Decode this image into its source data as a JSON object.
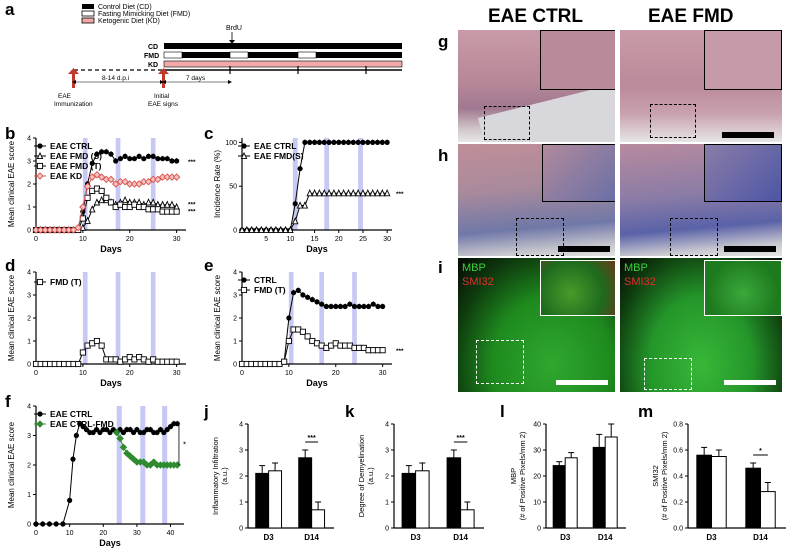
{
  "panels": [
    "a",
    "b",
    "c",
    "d",
    "e",
    "f",
    "g",
    "h",
    "i",
    "j",
    "k",
    "l",
    "m"
  ],
  "schematic": {
    "legend": [
      "Control Diet (CD)",
      "Fasting Mimicking Diet (FMD)",
      "Ketogenic Diet (KD)"
    ],
    "brdu": "BrdU",
    "rows": [
      "CD",
      "FMD",
      "KD"
    ],
    "immunization": "EAE\nImmunization",
    "initial": "Initial\nEAE signs",
    "dpi": "8-14 d.p.i",
    "days7": "7 days",
    "colors": {
      "cd": "#000000",
      "fmd": "#ffffff",
      "kd": "#f2aaa8"
    }
  },
  "micro": {
    "col_titles": [
      "EAE CTRL",
      "EAE FMD"
    ],
    "mbp": "MBP",
    "smi32": "SMI32"
  },
  "stars": "***",
  "star1": "*",
  "chart_data": [
    {
      "id": "b",
      "type": "line",
      "xlabel": "Days",
      "ylabel": "Mean clinical EAE score",
      "xlim": [
        0,
        32
      ],
      "ylim": [
        0,
        4
      ],
      "xticks": [
        0,
        10,
        20,
        30
      ],
      "yticks": [
        0,
        1,
        2,
        3,
        4
      ],
      "shaded": [
        [
          10,
          11
        ],
        [
          17,
          18
        ],
        [
          24.5,
          25.5
        ]
      ],
      "legend": [
        "EAE CTRL",
        "EAE FMD (S)",
        "EAE FMD (T)",
        "EAE KD"
      ],
      "series": [
        {
          "name": "EAE CTRL",
          "marker": "circle",
          "color": "#000",
          "x": [
            0,
            1,
            2,
            3,
            4,
            5,
            6,
            7,
            8,
            9,
            10,
            11,
            12,
            13,
            14,
            15,
            16,
            17,
            18,
            19,
            20,
            21,
            22,
            23,
            24,
            25,
            26,
            27,
            28,
            29,
            30
          ],
          "y": [
            0,
            0,
            0,
            0,
            0,
            0,
            0,
            0,
            0,
            0.1,
            0.8,
            2.0,
            2.9,
            3.3,
            3.4,
            3.4,
            3.3,
            3.0,
            3.1,
            3.2,
            3.1,
            3.1,
            3.2,
            3.1,
            3.2,
            3.2,
            3.1,
            3.1,
            3.1,
            3.0,
            3.0
          ]
        },
        {
          "name": "EAE FMD (S)",
          "marker": "triangle",
          "color": "#000",
          "x": [
            0,
            1,
            2,
            3,
            4,
            5,
            6,
            7,
            8,
            9,
            10,
            11,
            12,
            13,
            14,
            15,
            16,
            17,
            18,
            19,
            20,
            21,
            22,
            23,
            24,
            25,
            26,
            27,
            28,
            29,
            30
          ],
          "y": [
            0,
            0,
            0,
            0,
            0,
            0,
            0,
            0,
            0,
            0,
            0.1,
            0.4,
            0.9,
            1.2,
            1.3,
            1.3,
            1.2,
            1.1,
            1.2,
            1.3,
            1.2,
            1.2,
            1.2,
            1.1,
            1.2,
            1.2,
            1.1,
            1.1,
            1.1,
            1.1,
            1.0
          ]
        },
        {
          "name": "EAE FMD (T)",
          "marker": "square",
          "color": "#000",
          "x": [
            0,
            1,
            2,
            3,
            4,
            5,
            6,
            7,
            8,
            9,
            10,
            11,
            12,
            13,
            14,
            15,
            16,
            17,
            18,
            19,
            20,
            21,
            22,
            23,
            24,
            25,
            26,
            27,
            28,
            29,
            30
          ],
          "y": [
            0,
            0,
            0,
            0,
            0,
            0,
            0,
            0,
            0,
            0,
            0.5,
            1.4,
            1.7,
            1.8,
            1.7,
            1.4,
            1.2,
            1.0,
            1.1,
            1.0,
            1.0,
            1.1,
            1.0,
            1.0,
            0.9,
            0.9,
            0.9,
            0.8,
            0.8,
            0.8,
            0.8
          ]
        },
        {
          "name": "EAE KD",
          "marker": "diamond",
          "color": "#d9534f",
          "x": [
            0,
            1,
            2,
            3,
            4,
            5,
            6,
            7,
            8,
            9,
            10,
            11,
            12,
            13,
            14,
            15,
            16,
            17,
            18,
            19,
            20,
            21,
            22,
            23,
            24,
            25,
            26,
            27,
            28,
            29,
            30
          ],
          "y": [
            0,
            0,
            0,
            0,
            0,
            0,
            0,
            0,
            0,
            0.1,
            1.0,
            1.9,
            2.3,
            2.4,
            2.3,
            2.2,
            2.2,
            2.0,
            2.1,
            2.1,
            2.0,
            2.0,
            2.0,
            2.1,
            2.1,
            2.2,
            2.2,
            2.3,
            2.3,
            2.3,
            2.3
          ]
        }
      ]
    },
    {
      "id": "c",
      "type": "line",
      "xlabel": "Days",
      "ylabel": "Incidence Rate (%)",
      "xlim": [
        0,
        31
      ],
      "ylim": [
        0,
        105
      ],
      "xticks": [
        5,
        10,
        15,
        20,
        25,
        30
      ],
      "yticks": [
        0,
        50,
        100
      ],
      "shaded": [
        [
          10.5,
          11.5
        ],
        [
          17,
          18
        ],
        [
          24,
          25
        ]
      ],
      "legend": [
        "EAE CTRL",
        "EAE FMD(S)"
      ],
      "series": [
        {
          "name": "EAE CTRL",
          "marker": "circle",
          "color": "#000",
          "x": [
            0,
            1,
            2,
            3,
            4,
            5,
            6,
            7,
            8,
            9,
            10,
            11,
            12,
            13,
            14,
            15,
            16,
            17,
            18,
            19,
            20,
            21,
            22,
            23,
            24,
            25,
            26,
            27,
            28,
            29,
            30
          ],
          "y": [
            0,
            0,
            0,
            0,
            0,
            0,
            0,
            0,
            0,
            0,
            0,
            30,
            70,
            100,
            100,
            100,
            100,
            100,
            100,
            100,
            100,
            100,
            100,
            100,
            100,
            100,
            100,
            100,
            100,
            100,
            100
          ]
        },
        {
          "name": "EAE FMD(S)",
          "marker": "triangle",
          "color": "#000",
          "x": [
            0,
            1,
            2,
            3,
            4,
            5,
            6,
            7,
            8,
            9,
            10,
            11,
            12,
            13,
            14,
            15,
            16,
            17,
            18,
            19,
            20,
            21,
            22,
            23,
            24,
            25,
            26,
            27,
            28,
            29,
            30
          ],
          "y": [
            0,
            0,
            0,
            0,
            0,
            0,
            0,
            0,
            0,
            0,
            0,
            10,
            28,
            28,
            42,
            42,
            42,
            42,
            42,
            42,
            42,
            42,
            42,
            42,
            42,
            42,
            42,
            42,
            42,
            42,
            42
          ]
        }
      ]
    },
    {
      "id": "d",
      "type": "line",
      "xlabel": "Days",
      "ylabel": "Mean clinical EAE score",
      "xlim": [
        0,
        32
      ],
      "ylim": [
        0,
        4
      ],
      "xticks": [
        0,
        10,
        20,
        30
      ],
      "yticks": [
        0,
        1,
        2,
        3,
        4
      ],
      "shaded": [
        [
          10,
          11
        ],
        [
          17,
          18
        ],
        [
          24.5,
          25.5
        ]
      ],
      "legend": [
        "FMD (T)"
      ],
      "series": [
        {
          "name": "FMD (T)",
          "marker": "square",
          "color": "#000",
          "x": [
            0,
            1,
            2,
            3,
            4,
            5,
            6,
            7,
            8,
            9,
            10,
            11,
            12,
            13,
            14,
            15,
            16,
            17,
            18,
            19,
            20,
            21,
            22,
            23,
            24,
            25,
            26,
            27,
            28,
            29,
            30
          ],
          "y": [
            0,
            0,
            0,
            0,
            0,
            0,
            0,
            0,
            0,
            0,
            0.5,
            0.8,
            0.9,
            1.0,
            0.8,
            0.2,
            0.2,
            0.2,
            0.1,
            0.2,
            0.3,
            0.2,
            0.3,
            0.2,
            0.1,
            0.2,
            0.1,
            0.1,
            0.1,
            0.1,
            0.1
          ]
        }
      ]
    },
    {
      "id": "e",
      "type": "line",
      "xlabel": "Days",
      "ylabel": "Mean clinical EAE score",
      "xlim": [
        0,
        32
      ],
      "ylim": [
        0,
        4
      ],
      "xticks": [
        0,
        10,
        20,
        30
      ],
      "yticks": [
        0,
        1,
        2,
        3,
        4
      ],
      "shaded": [
        [
          10,
          11
        ],
        [
          16.5,
          17.5
        ],
        [
          23.5,
          24.5
        ]
      ],
      "legend": [
        "CTRL",
        "FMD (T)"
      ],
      "series": [
        {
          "name": "CTRL",
          "marker": "circle",
          "color": "#000",
          "x": [
            0,
            1,
            2,
            3,
            4,
            5,
            6,
            7,
            8,
            9,
            10,
            11,
            12,
            13,
            14,
            15,
            16,
            17,
            18,
            19,
            20,
            21,
            22,
            23,
            24,
            25,
            26,
            27,
            28,
            29,
            30
          ],
          "y": [
            0,
            0,
            0,
            0,
            0,
            0,
            0,
            0,
            0,
            0.1,
            2.0,
            3.1,
            3.2,
            3.0,
            2.9,
            2.8,
            2.7,
            2.6,
            2.5,
            2.5,
            2.5,
            2.5,
            2.5,
            2.6,
            2.5,
            2.5,
            2.5,
            2.5,
            2.6,
            2.5,
            2.5
          ]
        },
        {
          "name": "FMD (T)",
          "marker": "square",
          "color": "#000",
          "x": [
            0,
            1,
            2,
            3,
            4,
            5,
            6,
            7,
            8,
            9,
            10,
            11,
            12,
            13,
            14,
            15,
            16,
            17,
            18,
            19,
            20,
            21,
            22,
            23,
            24,
            25,
            26,
            27,
            28,
            29,
            30
          ],
          "y": [
            0,
            0,
            0,
            0,
            0,
            0,
            0,
            0,
            0,
            0.1,
            1.0,
            1.5,
            1.5,
            1.4,
            1.2,
            1.0,
            0.9,
            0.8,
            0.7,
            0.8,
            0.9,
            0.8,
            0.8,
            0.8,
            0.7,
            0.7,
            0.7,
            0.6,
            0.6,
            0.6,
            0.6
          ]
        }
      ]
    },
    {
      "id": "f",
      "type": "line",
      "xlabel": "Days",
      "ylabel": "Mean clinical EAE score",
      "xlim": [
        0,
        44
      ],
      "ylim": [
        0,
        4
      ],
      "xticks": [
        0,
        10,
        20,
        30,
        40
      ],
      "yticks": [
        0,
        1,
        2,
        3,
        4
      ],
      "shaded": [
        [
          24,
          25.5
        ],
        [
          31,
          32.5
        ],
        [
          37.5,
          39
        ]
      ],
      "legend": [
        "EAE CTRL",
        "EAE CTRL-FMD"
      ],
      "series": [
        {
          "name": "EAE CTRL",
          "marker": "circle",
          "color": "#000",
          "x": [
            0,
            2,
            4,
            6,
            8,
            10,
            11,
            12,
            13,
            14,
            15,
            16,
            17,
            18,
            19,
            20,
            21,
            22,
            23,
            24,
            25,
            26,
            27,
            28,
            29,
            30,
            31,
            32,
            33,
            34,
            35,
            36,
            37,
            38,
            39,
            40,
            41,
            42
          ],
          "y": [
            0,
            0,
            0,
            0,
            0,
            0.8,
            2.2,
            3.0,
            3.4,
            3.3,
            3.2,
            3.1,
            3.1,
            3.2,
            3.1,
            3.2,
            3.2,
            3.1,
            3.2,
            3.1,
            3.2,
            3.1,
            3.2,
            3.2,
            3.1,
            3.2,
            3.1,
            3.1,
            3.2,
            3.2,
            3.1,
            3.1,
            3.2,
            3.1,
            3.2,
            3.3,
            3.4,
            3.4
          ]
        },
        {
          "name": "EAE CTRL-FMD",
          "marker": "diamond",
          "color": "#2e8b2e",
          "x": [
            24,
            25,
            26,
            27,
            28,
            29,
            30,
            31,
            32,
            33,
            34,
            35,
            36,
            37,
            38,
            39,
            40,
            41,
            42
          ],
          "y": [
            3.1,
            2.9,
            2.6,
            2.4,
            2.3,
            2.2,
            2.1,
            2.1,
            2.1,
            2.0,
            2.0,
            2.1,
            2.0,
            2.0,
            2.0,
            2.0,
            2.0,
            2.0,
            2.0
          ]
        }
      ]
    },
    {
      "id": "j",
      "type": "bar",
      "ylabel": "Inflammatory Infiltration\n(a.u.)",
      "categories": [
        "D3",
        "D14"
      ],
      "ylim": [
        0,
        4
      ],
      "yticks": [
        0,
        1,
        2,
        3,
        4
      ],
      "series": [
        {
          "fill": "#000",
          "values": [
            2.1,
            2.7
          ],
          "err": [
            0.3,
            0.3
          ]
        },
        {
          "fill": "#fff",
          "values": [
            2.2,
            0.7
          ],
          "err": [
            0.3,
            0.3
          ]
        }
      ],
      "sig": {
        "group": 1,
        "label": "***"
      }
    },
    {
      "id": "k",
      "type": "bar",
      "ylabel": "Degree of Demyelination\n(a.u.)",
      "categories": [
        "D3",
        "D14"
      ],
      "ylim": [
        0,
        4
      ],
      "yticks": [
        0,
        1,
        2,
        3,
        4
      ],
      "series": [
        {
          "fill": "#000",
          "values": [
            2.1,
            2.7
          ],
          "err": [
            0.3,
            0.3
          ]
        },
        {
          "fill": "#fff",
          "values": [
            2.2,
            0.7
          ],
          "err": [
            0.3,
            0.3
          ]
        }
      ],
      "sig": {
        "group": 1,
        "label": "***"
      }
    },
    {
      "id": "l",
      "type": "bar",
      "ylabel": "MBP\n(# of Positive Pixels/mm 2)",
      "categories": [
        "D3",
        "D14"
      ],
      "ylim": [
        0,
        40
      ],
      "yticks": [
        0,
        10,
        20,
        30,
        40
      ],
      "series": [
        {
          "fill": "#000",
          "values": [
            24,
            31
          ],
          "err": [
            1.5,
            5
          ]
        },
        {
          "fill": "#fff",
          "values": [
            27,
            35
          ],
          "err": [
            2,
            5
          ]
        }
      ]
    },
    {
      "id": "m",
      "type": "bar",
      "ylabel": "SMI32\n(# of Positive Pixels/mm 2)",
      "categories": [
        "D3",
        "D14"
      ],
      "ylim": [
        0,
        0.8
      ],
      "yticks": [
        0.0,
        0.2,
        0.4,
        0.6,
        0.8
      ],
      "series": [
        {
          "fill": "#000",
          "values": [
            0.56,
            0.46
          ],
          "err": [
            0.06,
            0.04
          ]
        },
        {
          "fill": "#fff",
          "values": [
            0.55,
            0.28
          ],
          "err": [
            0.05,
            0.07
          ]
        }
      ],
      "sig": {
        "group": 1,
        "label": "*"
      }
    }
  ]
}
